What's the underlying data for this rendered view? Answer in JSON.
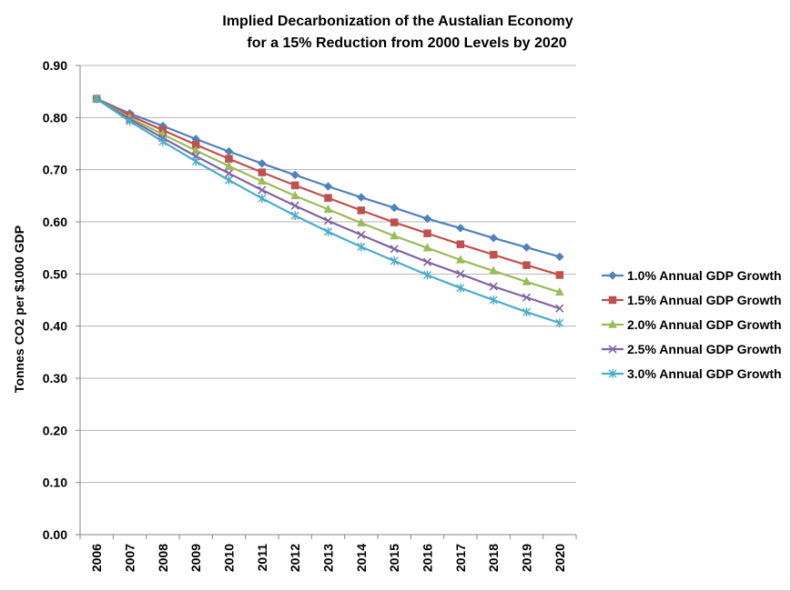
{
  "chart_data": {
    "type": "line",
    "title": [
      "Implied Decarbonization of the Austalian Economy",
      "for a 15% Reduction from 2000 Levels by 2020"
    ],
    "xlabel": "",
    "ylabel": "Tonnes CO2 per $1000 GDP",
    "ylim": [
      0,
      0.9
    ],
    "yticks": [
      "0.00",
      "0.10",
      "0.20",
      "0.30",
      "0.40",
      "0.50",
      "0.60",
      "0.70",
      "0.80",
      "0.90"
    ],
    "categories": [
      "2006",
      "2007",
      "2008",
      "2009",
      "2010",
      "2011",
      "2012",
      "2013",
      "2014",
      "2015",
      "2016",
      "2017",
      "2018",
      "2019",
      "2020"
    ],
    "grid": "horizontal",
    "legend_position": "right",
    "series": [
      {
        "name": "1.0% Annual GDP Growth",
        "color": "#4f81bd",
        "marker": "diamond",
        "values": [
          0.836,
          0.808,
          0.784,
          0.759,
          0.735,
          0.712,
          0.69,
          0.668,
          0.647,
          0.627,
          0.606,
          0.588,
          0.569,
          0.551,
          0.533
        ]
      },
      {
        "name": "1.5% Annual GDP Growth",
        "color": "#c0504d",
        "marker": "square",
        "values": [
          0.836,
          0.804,
          0.776,
          0.748,
          0.721,
          0.695,
          0.67,
          0.646,
          0.622,
          0.599,
          0.578,
          0.557,
          0.537,
          0.517,
          0.498
        ]
      },
      {
        "name": "2.0% Annual GDP Growth",
        "color": "#9bbb59",
        "marker": "triangle",
        "values": [
          0.836,
          0.8,
          0.768,
          0.737,
          0.707,
          0.678,
          0.65,
          0.624,
          0.598,
          0.573,
          0.55,
          0.527,
          0.506,
          0.485,
          0.465
        ]
      },
      {
        "name": "2.5% Annual GDP Growth",
        "color": "#8064a2",
        "marker": "x",
        "values": [
          0.836,
          0.797,
          0.761,
          0.726,
          0.693,
          0.661,
          0.631,
          0.602,
          0.575,
          0.548,
          0.523,
          0.5,
          0.476,
          0.455,
          0.434
        ]
      },
      {
        "name": "3.0% Annual GDP Growth",
        "color": "#4bacc6",
        "marker": "star",
        "values": [
          0.836,
          0.793,
          0.754,
          0.716,
          0.68,
          0.645,
          0.612,
          0.581,
          0.552,
          0.525,
          0.498,
          0.473,
          0.45,
          0.427,
          0.406
        ]
      }
    ]
  }
}
